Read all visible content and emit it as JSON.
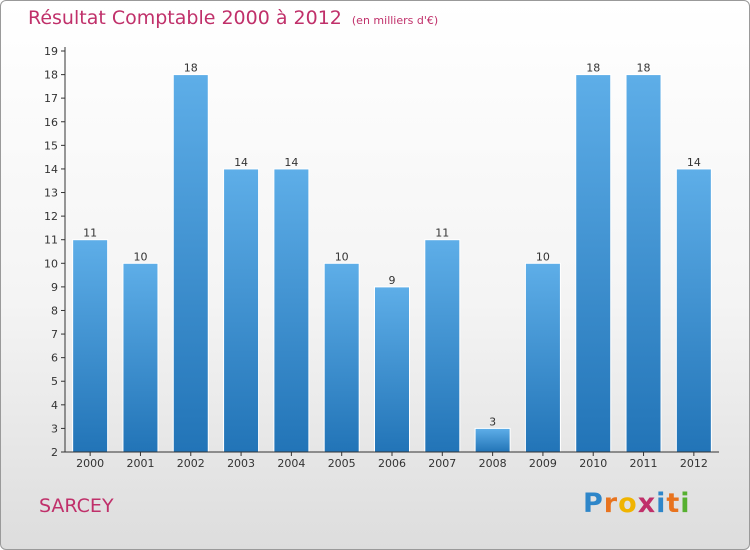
{
  "chart_data": {
    "type": "bar",
    "title": "Résultat Comptable 2000 à 2012",
    "subtitle": "(en milliers d'€)",
    "categories": [
      "2000",
      "2001",
      "2002",
      "2003",
      "2004",
      "2005",
      "2006",
      "2007",
      "2008",
      "2009",
      "2010",
      "2011",
      "2012"
    ],
    "values": [
      11,
      10,
      18,
      14,
      14,
      10,
      9,
      11,
      3,
      10,
      18,
      18,
      14
    ],
    "ylim": [
      2,
      19
    ],
    "yticks": [
      2,
      3,
      4,
      5,
      6,
      7,
      8,
      9,
      10,
      11,
      12,
      13,
      14,
      15,
      16,
      17,
      18,
      19
    ],
    "xlabel": "",
    "ylabel": "",
    "grid": false,
    "bar_color_light": "#5eaee8",
    "bar_color_dark": "#2274b7"
  },
  "footer": {
    "commune": "SARCEY",
    "brand": [
      "P",
      "r",
      "o",
      "x",
      "i",
      "t",
      "i"
    ],
    "brand_colors": [
      "#2e86c9",
      "#e8731e",
      "#f0b400",
      "#c0306a",
      "#2e86c9",
      "#e8731e",
      "#56b030"
    ]
  },
  "colors": {
    "accent": "#c0306a",
    "axis": "#333333"
  }
}
